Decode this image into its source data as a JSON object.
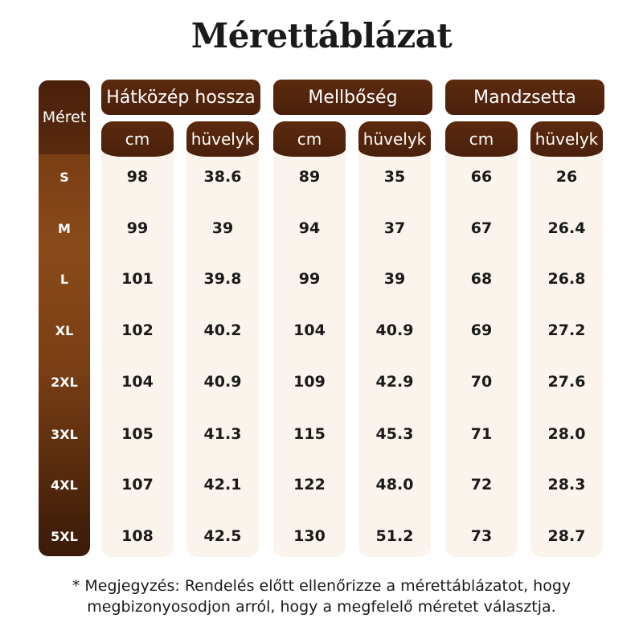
{
  "title": "Mérettáblázat",
  "size_header": "Méret",
  "sizes": [
    "S",
    "M",
    "L",
    "XL",
    "2XL",
    "3XL",
    "4XL",
    "5XL"
  ],
  "groups": [
    {
      "label": "Hátközép hossza",
      "units": [
        "cm",
        "hüvelyk"
      ]
    },
    {
      "label": "Mellbőség",
      "units": [
        "cm",
        "hüvelyk"
      ]
    },
    {
      "label": "Mandzsetta",
      "units": [
        "cm",
        "hüvelyk"
      ]
    }
  ],
  "columns": [
    [
      "98",
      "99",
      "101",
      "102",
      "104",
      "105",
      "107",
      "108"
    ],
    [
      "38.6",
      "39",
      "39.8",
      "40.2",
      "40.9",
      "41.3",
      "42.1",
      "42.5"
    ],
    [
      "89",
      "94",
      "99",
      "104",
      "109",
      "115",
      "122",
      "130"
    ],
    [
      "35",
      "37",
      "39",
      "40.9",
      "42.9",
      "45.3",
      "48.0",
      "51.2"
    ],
    [
      "66",
      "67",
      "68",
      "69",
      "70",
      "71",
      "72",
      "73"
    ],
    [
      "26",
      "26.4",
      "26.8",
      "27.2",
      "27.6",
      "28.0",
      "28.3",
      "28.7"
    ]
  ],
  "note_line1": "* Megjegyzés: Rendelés előtt ellenőrizze a mérettáblázatot, hogy",
  "note_line2": "megbizonyosodjon arról, hogy a megfelelő méretet választja."
}
